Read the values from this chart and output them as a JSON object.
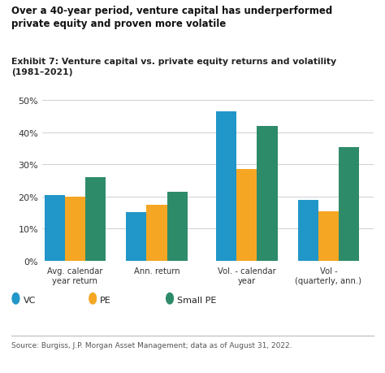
{
  "title": "Over a 40-year period, venture capital has underperformed\nprivate equity and proven more volatile",
  "subtitle": "Exhibit 7: Venture capital vs. private equity returns and volatility\n(1981–2021)",
  "categories": [
    "Avg. calendar\nyear return",
    "Ann. return",
    "Vol. - calendar\nyear",
    "Vol -\n(quarterly, ann.)"
  ],
  "series": {
    "VC": [
      20.5,
      15.2,
      46.5,
      19.0
    ],
    "PE": [
      20.0,
      17.5,
      28.5,
      15.5
    ],
    "Small PE": [
      26.0,
      21.5,
      42.0,
      35.5
    ]
  },
  "colors": {
    "VC": "#2196C8",
    "PE": "#F5A623",
    "Small PE": "#2E8B6A"
  },
  "ylim": [
    0,
    50
  ],
  "yticks": [
    0,
    10,
    20,
    30,
    40,
    50
  ],
  "ytick_labels": [
    "0%",
    "10%",
    "20%",
    "30%",
    "40%",
    "50%"
  ],
  "source": "Source: Burgiss, J.P. Morgan Asset Management; data as of August 31, 2022.",
  "background_color": "#ffffff",
  "grid_color": "#d0d0d0"
}
